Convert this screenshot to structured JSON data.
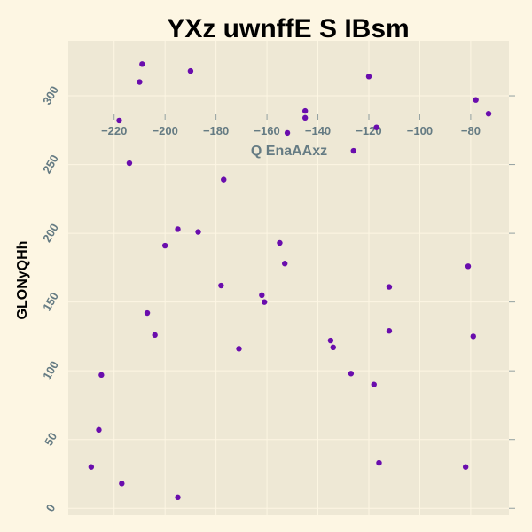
{
  "chart_data": {
    "type": "scatter",
    "title": "YXz  uwnffE S IBsm",
    "xlabel": "Q EnaAAxz",
    "ylabel": "GLONyQHh",
    "xlim": [
      -238,
      -65
    ],
    "ylim": [
      -5,
      340
    ],
    "xticks": [
      -220,
      -200,
      -180,
      -160,
      -140,
      -120,
      -100,
      -80
    ],
    "yticks": [
      0,
      50,
      100,
      150,
      200,
      250,
      300
    ],
    "grid": true,
    "colors": {
      "background": "#fdf6e3",
      "plot_area": "#eee8d5",
      "grid": "#fdf6e3",
      "marker": "#6a0dad",
      "tick_text": "#657b83"
    },
    "points": [
      {
        "x": -218,
        "y": 282
      },
      {
        "x": -209,
        "y": 323
      },
      {
        "x": -210,
        "y": 310
      },
      {
        "x": -190,
        "y": 318
      },
      {
        "x": -214,
        "y": 251
      },
      {
        "x": -177,
        "y": 239
      },
      {
        "x": -152,
        "y": 273
      },
      {
        "x": -145,
        "y": 289
      },
      {
        "x": -145,
        "y": 284
      },
      {
        "x": -120,
        "y": 314
      },
      {
        "x": -117,
        "y": 277
      },
      {
        "x": -126,
        "y": 260
      },
      {
        "x": -78,
        "y": 297
      },
      {
        "x": -73,
        "y": 287
      },
      {
        "x": -195,
        "y": 203
      },
      {
        "x": -187,
        "y": 201
      },
      {
        "x": -200,
        "y": 191
      },
      {
        "x": -155,
        "y": 193
      },
      {
        "x": -153,
        "y": 178
      },
      {
        "x": -207,
        "y": 142
      },
      {
        "x": -204,
        "y": 126
      },
      {
        "x": -178,
        "y": 162
      },
      {
        "x": -162,
        "y": 155
      },
      {
        "x": -161,
        "y": 150
      },
      {
        "x": -171,
        "y": 116
      },
      {
        "x": -135,
        "y": 122
      },
      {
        "x": -134,
        "y": 117
      },
      {
        "x": -112,
        "y": 161
      },
      {
        "x": -112,
        "y": 129
      },
      {
        "x": -127,
        "y": 98
      },
      {
        "x": -118,
        "y": 90
      },
      {
        "x": -81,
        "y": 176
      },
      {
        "x": -79,
        "y": 125
      },
      {
        "x": -225,
        "y": 97
      },
      {
        "x": -226,
        "y": 57
      },
      {
        "x": -229,
        "y": 30
      },
      {
        "x": -217,
        "y": 18
      },
      {
        "x": -195,
        "y": 8
      },
      {
        "x": -116,
        "y": 33
      },
      {
        "x": -82,
        "y": 30
      }
    ]
  }
}
